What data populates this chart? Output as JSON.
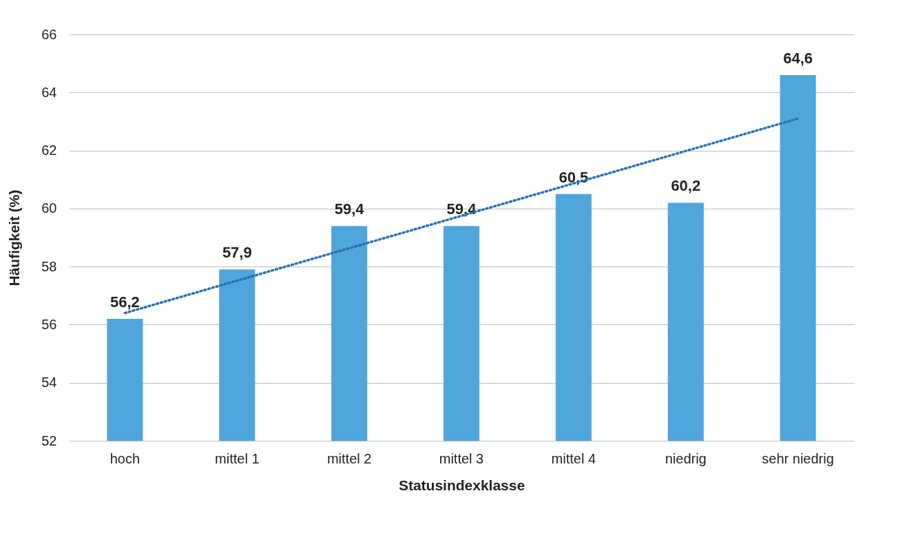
{
  "chart_data": {
    "type": "bar",
    "xlabel": "Statusindexklasse",
    "ylabel": "Häufigkeit (%)",
    "categories": [
      "hoch",
      "mittel 1",
      "mittel 2",
      "mittel 3",
      "mittel 4",
      "niedrig",
      "sehr niedrig"
    ],
    "series": [
      {
        "color": "#4fa6dc",
        "values": [
          56.2,
          57.9,
          59.4,
          59.4,
          60.5,
          60.2,
          64.6
        ],
        "value_labels": [
          "56,2",
          "57,9",
          "59,4",
          "59,4",
          "60,5",
          "60,2",
          "64,6"
        ]
      },
      {
        "type": "line",
        "color": "#2a6fb5",
        "line_style": "dotted",
        "x": [
          "hoch",
          "sehr niedrig"
        ],
        "values": [
          56.4,
          63.1
        ]
      }
    ],
    "ylim": [
      52,
      66
    ],
    "yticks": [
      52,
      54,
      56,
      58,
      60,
      62,
      64,
      66
    ],
    "grid": "y"
  }
}
